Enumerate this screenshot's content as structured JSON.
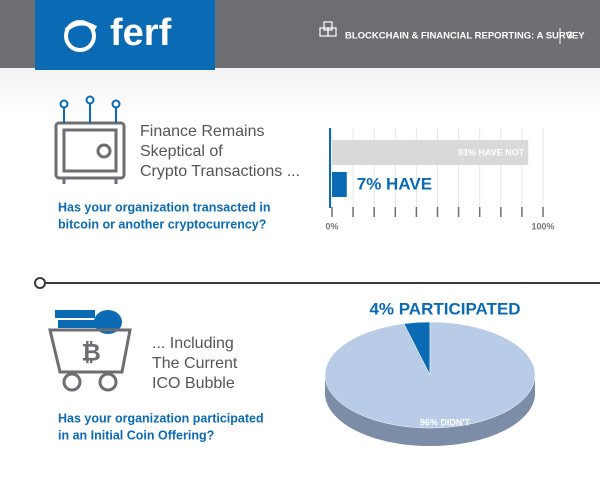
{
  "header": {
    "logo": "ferf",
    "title": "BLOCKCHAIN & FINANCIAL REPORTING: A SURVEY",
    "page": "3"
  },
  "sections": [
    {
      "heading": [
        "Finance Remains",
        "Skeptical of",
        "Crypto Transactions ..."
      ],
      "question": [
        "Has your organization transacted in",
        "bitcoin or another cryptocurrency?"
      ]
    },
    {
      "heading": [
        "... Including",
        "The Current",
        "ICO Bubble"
      ],
      "question": [
        "Has your organization participated",
        "in an Initial Coin Offering?"
      ]
    }
  ],
  "chart_data": [
    {
      "type": "hbar",
      "values": [
        93,
        7
      ],
      "value_labels": [
        "93% HAVE NOT",
        "7% HAVE"
      ],
      "colors": [
        "#d9d9d9",
        "#0a6ab4"
      ],
      "xlim": [
        0,
        100
      ],
      "xticks": [
        {
          "value": 0,
          "label": "0%"
        },
        {
          "value": 100,
          "label": "100%"
        }
      ],
      "minor_xticks": [
        10,
        20,
        30,
        40,
        50,
        60,
        70,
        80,
        90
      ],
      "grid": true
    },
    {
      "type": "pie",
      "values": [
        4,
        96
      ],
      "value_labels": [
        "4% PARTICIPATED",
        "96% DIDN'T"
      ],
      "colors": [
        "#0a6ab4",
        "#b8cce8"
      ]
    }
  ]
}
